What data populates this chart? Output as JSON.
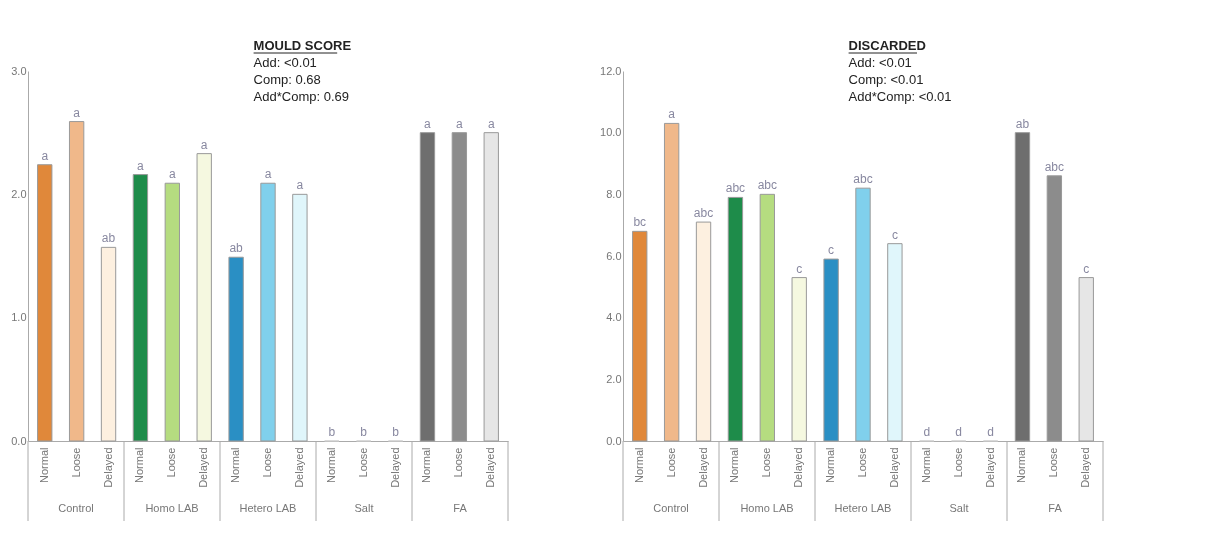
{
  "chart_data": [
    {
      "type": "bar",
      "title": "MOULD SCORE",
      "categories": [
        "Normal",
        "Loose",
        "Delayed",
        "Normal",
        "Loose",
        "Delayed",
        "Normal",
        "Loose",
        "Delayed",
        "Normal",
        "Loose",
        "Delayed",
        "Normal",
        "Loose",
        "Delayed"
      ],
      "values": [
        2.24,
        2.59,
        1.57,
        2.16,
        2.09,
        2.33,
        1.49,
        2.09,
        2.0,
        0,
        0,
        0,
        2.5,
        2.5,
        2.5
      ],
      "colors": [
        "#e0883a",
        "#f0b88a",
        "#fdf0e0",
        "#1e8c4a",
        "#b5dc80",
        "#f5f8e0",
        "#2a8fc4",
        "#80d0ec",
        "#e0f6fb",
        "#cccccc",
        "#cccccc",
        "#cccccc",
        "#6e6e6e",
        "#8c8c8c",
        "#e6e6e6"
      ],
      "value_labels": [
        "a",
        "a",
        "ab",
        "a",
        "a",
        "a",
        "ab",
        "a",
        "a",
        "b",
        "b",
        "b",
        "a",
        "a",
        "a"
      ],
      "ylim": [
        0,
        3
      ],
      "yticks": [
        {
          "value": 0,
          "label": "0.0"
        },
        {
          "value": 1,
          "label": "1.0"
        },
        {
          "value": 2,
          "label": "2.0"
        },
        {
          "value": 3,
          "label": "3.0"
        }
      ],
      "grid": false,
      "annotations": [
        "Add: <0.01",
        "Comp: 0.68",
        "Add*Comp: 0.69",
        "Control",
        "Homo LAB",
        "Hetero LAB",
        "Salt",
        "FA"
      ]
    },
    {
      "type": "bar",
      "title": "DISCARDED",
      "categories": [
        "Normal",
        "Loose",
        "Delayed",
        "Normal",
        "Loose",
        "Delayed",
        "Normal",
        "Loose",
        "Delayed",
        "Normal",
        "Loose",
        "Delayed",
        "Normal",
        "Loose",
        "Delayed"
      ],
      "values": [
        6.8,
        10.3,
        7.1,
        7.9,
        8.0,
        5.3,
        5.9,
        8.2,
        6.4,
        0,
        0,
        0,
        10.0,
        8.6,
        5.3
      ],
      "colors": [
        "#e0883a",
        "#f0b88a",
        "#fdf0e0",
        "#1e8c4a",
        "#b5dc80",
        "#f5f8e0",
        "#2a8fc4",
        "#80d0ec",
        "#e0f6fb",
        "#cccccc",
        "#cccccc",
        "#cccccc",
        "#6e6e6e",
        "#8c8c8c",
        "#e6e6e6"
      ],
      "value_labels": [
        "bc",
        "a",
        "abc",
        "abc",
        "abc",
        "c",
        "c",
        "abc",
        "c",
        "d",
        "d",
        "d",
        "ab",
        "abc",
        "c"
      ],
      "ylim": [
        0,
        12
      ],
      "yticks": [
        {
          "value": 0,
          "label": "0.0"
        },
        {
          "value": 2,
          "label": "2.0"
        },
        {
          "value": 4,
          "label": "4.0"
        },
        {
          "value": 6,
          "label": "6.0"
        },
        {
          "value": 8,
          "label": "8.0"
        },
        {
          "value": 10,
          "label": "10.0"
        },
        {
          "value": 12,
          "label": "12.0"
        }
      ],
      "grid": false,
      "annotations": [
        "Add: <0.01",
        "Comp: <0.01",
        "Add*Comp: <0.01",
        "Control",
        "Homo LAB",
        "Hetero LAB",
        "Salt",
        "FA"
      ]
    }
  ]
}
